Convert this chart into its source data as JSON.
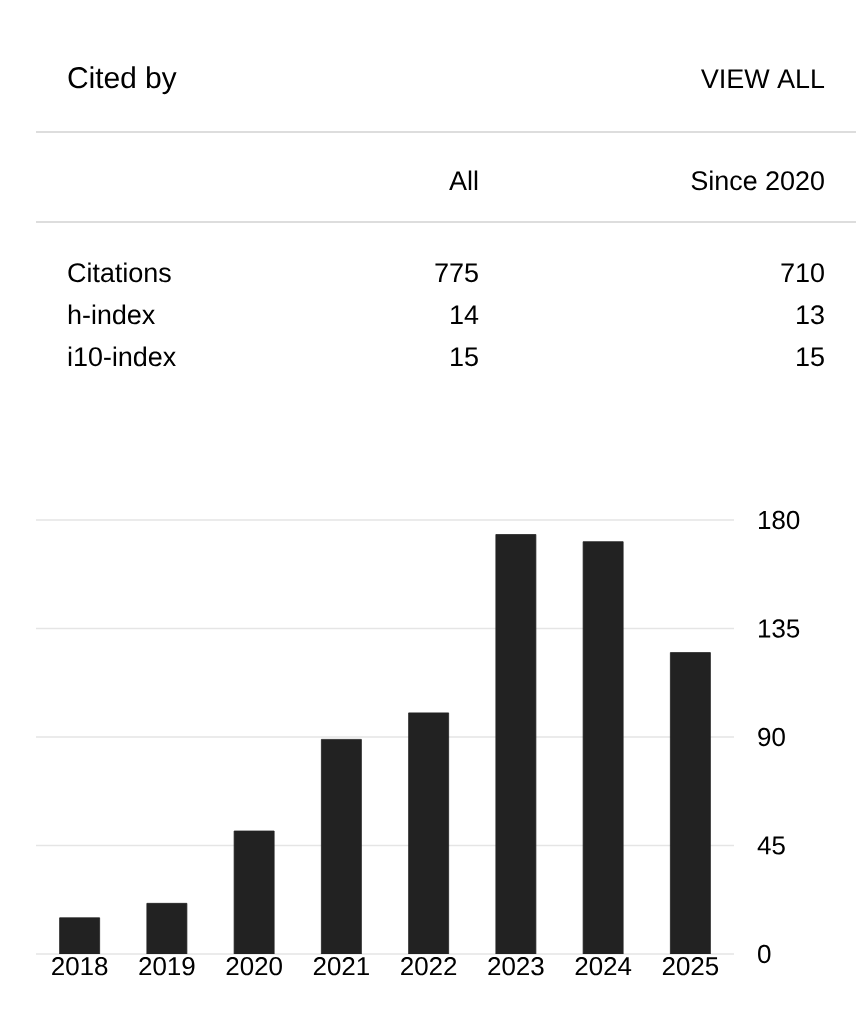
{
  "chart_data": [
    {
      "type": "other",
      "title": "Cited by",
      "annotations": [
        "VIEW ALL",
        "All",
        "Since 2020",
        "Citations",
        "775",
        "710",
        "h-index",
        "14",
        "13",
        "i10-index",
        "15",
        "15"
      ]
    },
    {
      "type": "bar",
      "categories": [
        "2018",
        "2019",
        "2020",
        "2021",
        "2022",
        "2023",
        "2024",
        "2025"
      ],
      "values": [
        15,
        21,
        51,
        89,
        100,
        174,
        171,
        125
      ],
      "color": "#222222",
      "ylim": [
        0,
        180
      ],
      "yticks": [
        0,
        45,
        90,
        135,
        180
      ],
      "grid": "y"
    }
  ]
}
